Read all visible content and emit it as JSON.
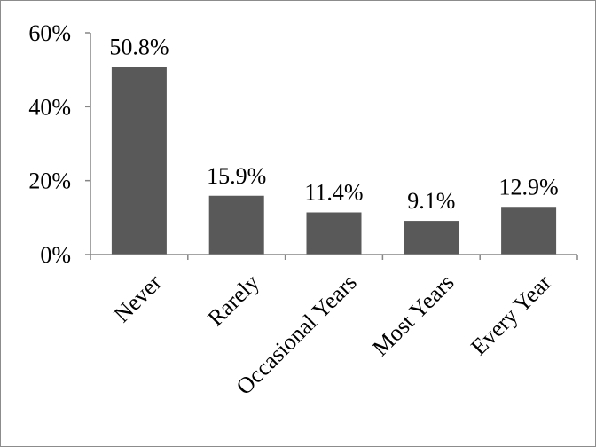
{
  "chart_data": {
    "type": "bar",
    "title": "",
    "xlabel": "",
    "ylabel": "",
    "categories": [
      "Never",
      "Rarely",
      "Occasional Years",
      "Most Years",
      "Every Year"
    ],
    "values": [
      50.8,
      15.9,
      11.4,
      9.1,
      12.9
    ],
    "data_labels": [
      "50.8%",
      "15.9%",
      "11.4%",
      "9.1%",
      "12.9%"
    ],
    "ylim": [
      0,
      60
    ],
    "yticks": [
      0,
      20,
      40,
      60
    ],
    "ytick_labels": [
      "0%",
      "20%",
      "40%",
      "60%"
    ],
    "grid": false,
    "legend": "none",
    "bar_color": "#595959",
    "axis_color": "#868686"
  }
}
